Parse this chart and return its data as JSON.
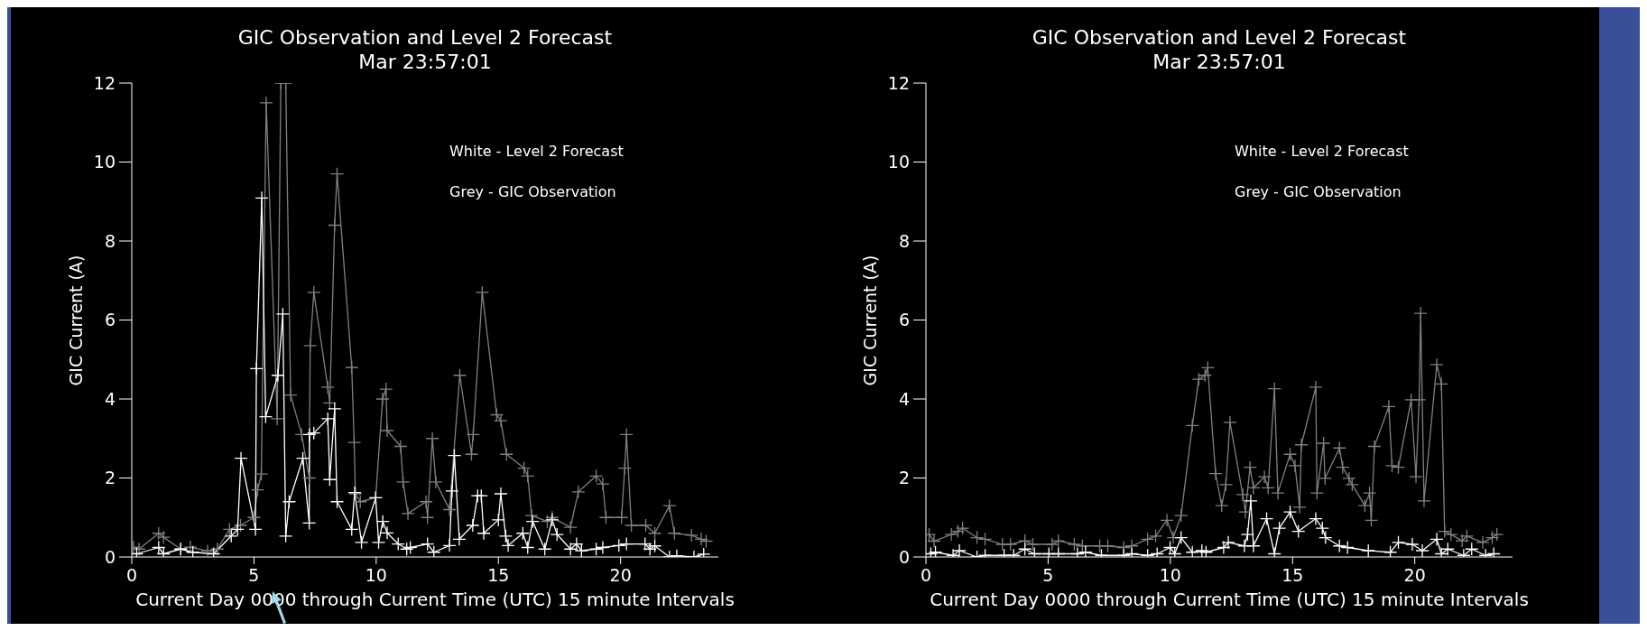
{
  "chart_data": [
    {
      "type": "line",
      "title": "GIC Observation and Level 2 Forecast",
      "subtitle": "Mar 23:57:01",
      "xlabel": "Current Day 0000 through Current Time (UTC) 15 minute Intervals",
      "ylabel": "GIC Current (A)",
      "annotations": [
        "White - Level 2 Forecast",
        "Grey - GIC Observation"
      ],
      "xlim": [
        0,
        24
      ],
      "xticks": [
        0,
        5,
        10,
        15,
        20
      ],
      "ylim": [
        0,
        12
      ],
      "yticks": [
        0,
        2,
        4,
        6,
        8,
        10,
        12
      ],
      "marker": "cross",
      "line_style": "solid",
      "series": [
        {
          "color": "#808080",
          "x": [
            0.07,
            0.3,
            1.1,
            1.3,
            2.0,
            2.4,
            3.1,
            3.5,
            4.0,
            4.45,
            5.0,
            5.15,
            5.3,
            5.5,
            5.95,
            6.1,
            6.3,
            6.5,
            6.95,
            7.26,
            7.3,
            7.45,
            8.02,
            8.1,
            8.3,
            8.4,
            9.0,
            9.1,
            9.15,
            9.35,
            9.98,
            10.26,
            10.4,
            10.45,
            11.0,
            11.1,
            11.3,
            12.04,
            12.1,
            12.3,
            12.44,
            13.0,
            13.42,
            13.9,
            13.97,
            14.34,
            14.93,
            15.1,
            15.33,
            16.05,
            16.2,
            16.36,
            17.0,
            17.2,
            17.95,
            18.27,
            19.0,
            19.27,
            19.4,
            20.04,
            20.17,
            20.24,
            20.44,
            21.03,
            21.4,
            22.0,
            22.2,
            22.9,
            23.3,
            23.5
          ],
          "values": [
            0.25,
            0.2,
            0.6,
            0.5,
            0.2,
            0.25,
            0.15,
            0.2,
            0.7,
            0.8,
            1.0,
            1.7,
            2.1,
            11.5,
            3.5,
            12,
            12,
            4.1,
            3.1,
            2.0,
            5.35,
            6.7,
            4.3,
            3.9,
            8.4,
            9.7,
            4.8,
            2.9,
            1.6,
            1.4,
            1.5,
            4.0,
            4.25,
            3.2,
            2.8,
            1.9,
            1.1,
            1.4,
            1.0,
            3.0,
            1.9,
            1.2,
            4.6,
            2.6,
            3.1,
            6.7,
            3.6,
            3.45,
            2.6,
            2.25,
            2.05,
            1.05,
            0.9,
            1.0,
            0.75,
            1.65,
            2.05,
            1.85,
            1.0,
            1.0,
            2.25,
            3.1,
            0.8,
            0.8,
            0.6,
            1.3,
            0.6,
            0.55,
            0.45,
            0.4
          ]
        },
        {
          "color": "#ffffff",
          "x": [
            0.2,
            1.1,
            1.3,
            2.0,
            2.5,
            3.35,
            4.07,
            4.33,
            4.47,
            5.06,
            5.1,
            5.32,
            5.48,
            5.98,
            6.18,
            6.3,
            6.44,
            7.0,
            7.26,
            7.27,
            7.45,
            8.02,
            8.1,
            8.3,
            8.4,
            9.0,
            9.12,
            9.4,
            9.98,
            10.1,
            10.27,
            10.45,
            10.9,
            11.25,
            11.4,
            12.1,
            12.36,
            13.0,
            13.1,
            13.2,
            13.4,
            13.95,
            14.15,
            14.3,
            14.4,
            15.0,
            15.1,
            15.3,
            15.4,
            16.0,
            16.2,
            16.4,
            16.9,
            17.2,
            17.4,
            17.95,
            18.2,
            18.4,
            19.0,
            19.27,
            19.93,
            20.24,
            21.0,
            21.2,
            21.4,
            22.0,
            22.3,
            23.0,
            23.4
          ],
          "values": [
            0.08,
            0.24,
            0.08,
            0.2,
            0.12,
            0.08,
            0.53,
            0.7,
            2.5,
            0.7,
            4.77,
            9.09,
            3.55,
            4.6,
            6.15,
            0.53,
            1.4,
            2.5,
            0.86,
            3.1,
            3.14,
            3.5,
            1.96,
            3.75,
            1.4,
            0.7,
            1.63,
            0.37,
            1.5,
            0.37,
            0.9,
            0.61,
            0.33,
            0.2,
            0.24,
            0.33,
            0.12,
            0.29,
            1.67,
            2.57,
            0.45,
            0.8,
            1.55,
            1.55,
            0.6,
            0.94,
            1.6,
            0.53,
            0.29,
            0.6,
            0.24,
            0.9,
            0.2,
            0.94,
            0.57,
            0.2,
            0.33,
            0.16,
            0.2,
            0.24,
            0.29,
            0.33,
            0.33,
            0.2,
            0.28,
            0.0,
            0.03,
            0.0,
            0.07
          ]
        }
      ]
    },
    {
      "type": "line",
      "title": "GIC Observation and Level 2 Forecast",
      "subtitle": "Mar 23:57:01",
      "xlabel": "Current Day 0000 through Current Time (UTC) 15 minute Intervals",
      "ylabel": "GIC Current (A)",
      "annotations": [
        "White - Level 2 Forecast",
        "Grey - GIC Observation"
      ],
      "xlim": [
        0,
        24
      ],
      "xticks": [
        0,
        5,
        10,
        15,
        20
      ],
      "ylim": [
        0,
        12
      ],
      "yticks": [
        0,
        2,
        4,
        6,
        8,
        10,
        12
      ],
      "marker": "cross",
      "line_style": "solid",
      "series": [
        {
          "color": "#808080",
          "x": [
            0.13,
            0.33,
            1.04,
            1.31,
            1.5,
            2.09,
            2.42,
            3.13,
            3.46,
            4.05,
            4.37,
            5.16,
            5.42,
            6.07,
            6.4,
            7.11,
            7.44,
            8.09,
            8.42,
            9.07,
            9.4,
            9.86,
            10.12,
            10.44,
            10.9,
            11.16,
            11.42,
            11.53,
            11.85,
            12.1,
            12.27,
            12.44,
            12.96,
            13.07,
            13.26,
            13.4,
            13.85,
            14.0,
            14.26,
            14.4,
            14.9,
            15.1,
            15.29,
            15.36,
            15.95,
            16.0,
            16.27,
            16.33,
            16.92,
            17.05,
            17.31,
            17.44,
            17.96,
            18.15,
            18.22,
            18.35,
            18.94,
            19.07,
            19.33,
            19.85,
            20.05,
            20.18,
            20.24,
            20.38,
            20.9,
            21.09,
            21.22,
            21.48,
            21.94,
            22.13,
            22.78,
            23.17,
            23.36
          ],
          "values": [
            0.57,
            0.4,
            0.57,
            0.65,
            0.73,
            0.49,
            0.45,
            0.32,
            0.32,
            0.41,
            0.32,
            0.32,
            0.41,
            0.32,
            0.28,
            0.28,
            0.28,
            0.24,
            0.28,
            0.45,
            0.53,
            0.93,
            0.49,
            1.05,
            3.33,
            4.5,
            4.6,
            4.79,
            2.11,
            1.3,
            1.83,
            3.41,
            1.58,
            1.14,
            2.27,
            1.75,
            2.03,
            1.75,
            4.26,
            1.62,
            2.6,
            2.31,
            1.26,
            2.84,
            4.3,
            1.62,
            2.88,
            1.99,
            2.76,
            2.27,
            1.99,
            1.83,
            1.3,
            1.62,
            0.93,
            2.8,
            3.81,
            2.31,
            2.27,
            3.98,
            2.03,
            3.98,
            6.17,
            1.42,
            4.87,
            4.38,
            0.65,
            0.57,
            0.41,
            0.53,
            0.37,
            0.49,
            0.57
          ]
        },
        {
          "color": "#ffffff",
          "x": [
            0.2,
            0.39,
            1.11,
            1.37,
            2.09,
            2.42,
            3.2,
            3.59,
            4.05,
            4.44,
            5.03,
            5.42,
            6.2,
            6.53,
            7.18,
            8.09,
            8.42,
            9.07,
            9.46,
            9.99,
            10.18,
            10.44,
            10.9,
            11.29,
            11.46,
            12.18,
            12.37,
            13.03,
            13.16,
            13.29,
            13.4,
            13.94,
            14.26,
            14.46,
            14.9,
            15.24,
            15.95,
            16.22,
            16.35,
            16.92,
            17.25,
            18.1,
            19.0,
            19.33,
            19.9,
            20.31,
            20.9,
            21.09,
            21.35,
            22.0,
            22.33,
            22.9,
            23.23
          ],
          "values": [
            0.08,
            0.12,
            0.04,
            0.16,
            0.0,
            0.04,
            0.04,
            0.04,
            0.2,
            0.08,
            0.08,
            0.08,
            0.08,
            0.12,
            0.04,
            0.04,
            0.08,
            0.04,
            0.08,
            0.24,
            0.08,
            0.49,
            0.12,
            0.16,
            0.12,
            0.24,
            0.37,
            0.28,
            0.57,
            1.42,
            0.28,
            0.97,
            0.08,
            0.73,
            1.14,
            0.65,
            0.97,
            0.73,
            0.49,
            0.28,
            0.24,
            0.16,
            0.12,
            0.37,
            0.32,
            0.16,
            0.45,
            0.08,
            0.2,
            0.04,
            0.2,
            0.04,
            0.08
          ]
        }
      ]
    }
  ]
}
